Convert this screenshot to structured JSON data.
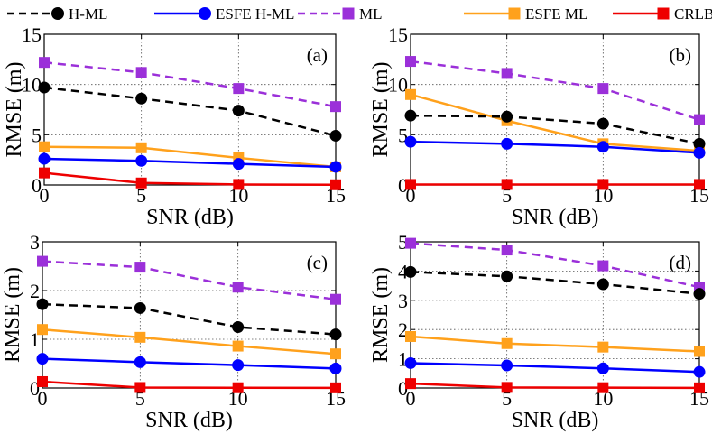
{
  "legend": [
    {
      "key": "hml",
      "label": "H-ML",
      "color": "#000000",
      "marker": "circle",
      "dash": true
    },
    {
      "key": "ehml",
      "label": "ESFE H-ML",
      "color": "#0000ff",
      "marker": "circle",
      "dash": false
    },
    {
      "key": "ml",
      "label": "ML",
      "color": "#9b30d9",
      "marker": "square",
      "dash": true
    },
    {
      "key": "eml",
      "label": "ESFE ML",
      "color": "#ffa11c",
      "marker": "square",
      "dash": false
    },
    {
      "key": "crlb",
      "label": "CRLB",
      "color": "#ee0000",
      "marker": "square",
      "dash": false
    }
  ],
  "chart_data": [
    {
      "type": "line",
      "panel": "(a)",
      "xlabel": "SNR (dB)",
      "ylabel": "RMSE (m)",
      "x": [
        0,
        5,
        10,
        15
      ],
      "xlim": [
        0,
        15
      ],
      "ylim": [
        0,
        15
      ],
      "yticks": [
        0,
        5,
        10,
        15
      ],
      "xticks": [
        0,
        5,
        10,
        15
      ],
      "grid": true,
      "series": [
        {
          "key": "ml",
          "values": [
            12.2,
            11.2,
            9.6,
            7.8
          ]
        },
        {
          "key": "hml",
          "values": [
            9.7,
            8.6,
            7.4,
            4.9
          ]
        },
        {
          "key": "eml",
          "values": [
            3.8,
            3.7,
            2.7,
            1.8
          ]
        },
        {
          "key": "ehml",
          "values": [
            2.6,
            2.4,
            2.1,
            1.8
          ]
        },
        {
          "key": "crlb",
          "values": [
            1.2,
            0.2,
            0.05,
            0.02
          ]
        }
      ]
    },
    {
      "type": "line",
      "panel": "(b)",
      "xlabel": "SNR (dB)",
      "ylabel": "RMSE (m)",
      "x": [
        0,
        5,
        10,
        15
      ],
      "xlim": [
        0,
        15
      ],
      "ylim": [
        0,
        15
      ],
      "yticks": [
        0,
        5,
        10,
        15
      ],
      "xticks": [
        0,
        5,
        10,
        15
      ],
      "grid": true,
      "series": [
        {
          "key": "ml",
          "values": [
            12.3,
            11.1,
            9.6,
            6.5
          ]
        },
        {
          "key": "eml",
          "values": [
            9.0,
            6.4,
            4.1,
            3.4
          ]
        },
        {
          "key": "hml",
          "values": [
            6.9,
            6.8,
            6.1,
            4.1
          ]
        },
        {
          "key": "ehml",
          "values": [
            4.3,
            4.1,
            3.8,
            3.2
          ]
        },
        {
          "key": "crlb",
          "values": [
            0.05,
            0.05,
            0.05,
            0.05
          ]
        }
      ]
    },
    {
      "type": "line",
      "panel": "(c)",
      "xlabel": "SNR (dB)",
      "ylabel": "RMSE (m)",
      "x": [
        0,
        5,
        10,
        15
      ],
      "xlim": [
        0,
        15
      ],
      "ylim": [
        0,
        3
      ],
      "yticks": [
        0,
        1,
        2,
        3
      ],
      "xticks": [
        0,
        5,
        10,
        15
      ],
      "grid": true,
      "series": [
        {
          "key": "ml",
          "values": [
            2.6,
            2.48,
            2.07,
            1.82
          ]
        },
        {
          "key": "hml",
          "values": [
            1.72,
            1.64,
            1.25,
            1.1
          ]
        },
        {
          "key": "eml",
          "values": [
            1.2,
            1.04,
            0.86,
            0.7
          ]
        },
        {
          "key": "ehml",
          "values": [
            0.6,
            0.53,
            0.47,
            0.4
          ]
        },
        {
          "key": "crlb",
          "values": [
            0.13,
            0.01,
            0.005,
            0.003
          ]
        }
      ]
    },
    {
      "type": "line",
      "panel": "(d)",
      "xlabel": "SNR (dB)",
      "ylabel": "RMSE (m)",
      "x": [
        0,
        5,
        10,
        15
      ],
      "xlim": [
        0,
        15
      ],
      "ylim": [
        0,
        5
      ],
      "yticks": [
        0,
        1,
        2,
        3,
        4,
        5
      ],
      "xticks": [
        0,
        5,
        10,
        15
      ],
      "grid": true,
      "series": [
        {
          "key": "ml",
          "values": [
            4.95,
            4.72,
            4.18,
            3.45
          ]
        },
        {
          "key": "hml",
          "values": [
            3.97,
            3.82,
            3.55,
            3.22
          ]
        },
        {
          "key": "eml",
          "values": [
            1.76,
            1.52,
            1.4,
            1.25
          ]
        },
        {
          "key": "ehml",
          "values": [
            0.85,
            0.77,
            0.67,
            0.55
          ]
        },
        {
          "key": "crlb",
          "values": [
            0.15,
            0.02,
            0.01,
            0.005
          ]
        }
      ]
    }
  ]
}
